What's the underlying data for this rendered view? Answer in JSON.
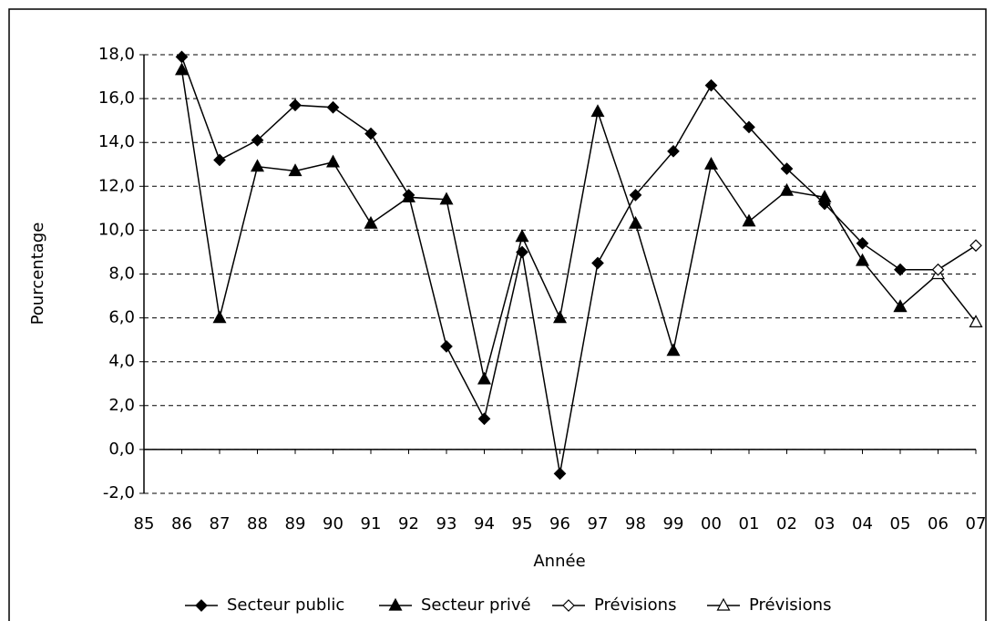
{
  "chart_data": {
    "type": "line",
    "y_label": "Pourcentage",
    "x_label": "Année",
    "categories": [
      "85",
      "86",
      "87",
      "88",
      "89",
      "90",
      "91",
      "92",
      "93",
      "94",
      "95",
      "96",
      "97",
      "98",
      "99",
      "00",
      "01",
      "02",
      "03",
      "04",
      "05",
      "06",
      "07"
    ],
    "series": [
      {
        "name": "Secteur public",
        "color": "#000000",
        "marker": "diamond",
        "filled": true,
        "values": [
          null,
          17.9,
          13.2,
          14.1,
          15.7,
          15.6,
          14.4,
          11.6,
          4.7,
          1.4,
          9.0,
          -1.1,
          8.5,
          11.6,
          13.6,
          16.6,
          14.7,
          12.8,
          11.2,
          9.4,
          8.2,
          null,
          null
        ]
      },
      {
        "name": "Secteur privé",
        "color": "#000000",
        "marker": "triangle",
        "filled": true,
        "values": [
          null,
          17.3,
          6.0,
          12.9,
          12.7,
          13.1,
          10.3,
          11.5,
          11.4,
          3.2,
          9.7,
          6.0,
          15.4,
          10.3,
          4.5,
          13.0,
          10.4,
          11.8,
          11.5,
          8.6,
          6.5,
          null,
          null
        ]
      },
      {
        "name": "Prévisions",
        "color": "#000000",
        "marker": "diamond",
        "filled": false,
        "values": [
          null,
          null,
          null,
          null,
          null,
          null,
          null,
          null,
          null,
          null,
          null,
          null,
          null,
          null,
          null,
          null,
          null,
          null,
          null,
          null,
          8.2,
          8.2,
          9.3
        ]
      },
      {
        "name": "Prévisions",
        "color": "#000000",
        "marker": "triangle",
        "filled": false,
        "values": [
          null,
          null,
          null,
          null,
          null,
          null,
          null,
          null,
          null,
          null,
          null,
          null,
          null,
          null,
          null,
          null,
          null,
          null,
          null,
          null,
          6.5,
          8.0,
          5.8
        ]
      }
    ],
    "ylim": [
      -2,
      18
    ],
    "yticks": [
      {
        "value": -2,
        "label": "-2,0"
      },
      {
        "value": 0,
        "label": "0,0"
      },
      {
        "value": 2,
        "label": "2,0"
      },
      {
        "value": 4,
        "label": "4,0"
      },
      {
        "value": 6,
        "label": "6,0"
      },
      {
        "value": 8,
        "label": "8,0"
      },
      {
        "value": 10,
        "label": "10,0"
      },
      {
        "value": 12,
        "label": "12,0"
      },
      {
        "value": 14,
        "label": "14,0"
      },
      {
        "value": 16,
        "label": "16,0"
      },
      {
        "value": 18,
        "label": "18,0"
      }
    ],
    "grid": true
  }
}
